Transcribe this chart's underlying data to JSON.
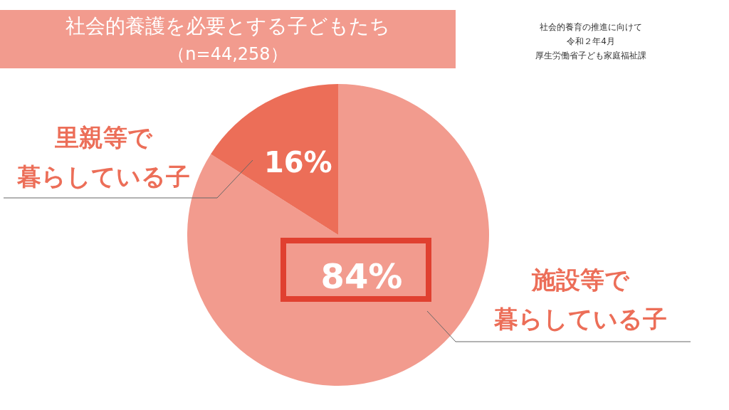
{
  "chart_data": {
    "type": "pie",
    "title": "社会的養護を必要とする子どもたち",
    "subtitle": "（n=44,258）",
    "categories": [
      "施設等で暮らしている子",
      "里親等で暮らしている子"
    ],
    "values": [
      84,
      16
    ],
    "colors": [
      "#f29b8e",
      "#ec6e58"
    ],
    "value_labels": [
      "84%",
      "16%"
    ],
    "annotations": [
      "社会的養育の推進に向けて",
      "令和２年4月",
      "厚生労働省子ども家庭福祉課"
    ]
  }
}
